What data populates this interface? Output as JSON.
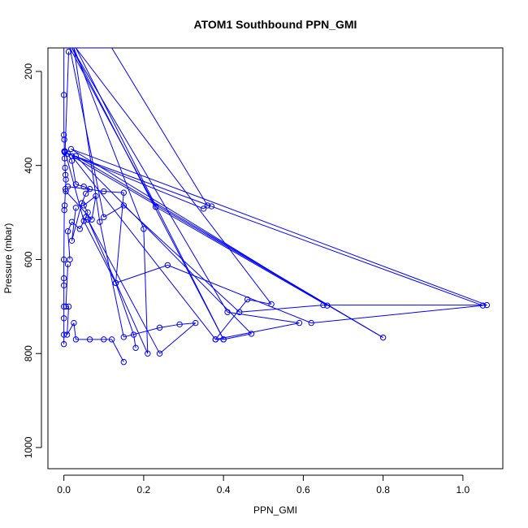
{
  "chart_data": {
    "type": "scatter",
    "title": "ATOM1 Southbound PPN_GMI",
    "xlabel": "PPN_GMI",
    "ylabel": "Pressure (mbar)",
    "xlim": [
      -0.04,
      1.1
    ],
    "ylim": [
      1045,
      150
    ],
    "y_reversed": true,
    "x_ticks": [
      "0.0",
      "0.2",
      "0.4",
      "0.6",
      "0.8",
      "1.0"
    ],
    "x_tick_values": [
      0,
      0.2,
      0.4,
      0.6,
      0.8,
      1.0
    ],
    "y_ticks": [
      "200",
      "400",
      "600",
      "800",
      "1000"
    ],
    "y_tick_values": [
      200,
      400,
      600,
      800,
      1000
    ],
    "grid": false,
    "series_color": "#0000ff",
    "series": [
      {
        "x": [
          0.0,
          0.0,
          0.0,
          0.001,
          0.001,
          0.002,
          0.003,
          0.004,
          0.005,
          0.004,
          0.002,
          0.001,
          0.0,
          0.0,
          0.0,
          0.0,
          0.0,
          0.0,
          0.0
        ],
        "y": [
          150,
          250,
          335,
          345,
          370,
          385,
          405,
          420,
          430,
          450,
          485,
          495,
          600,
          640,
          655,
          700,
          725,
          760,
          780
        ]
      },
      {
        "x": [
          0.01,
          0.12,
          0.36,
          0.35,
          0.002,
          0.37,
          1.05,
          0.62,
          0.26,
          0.13,
          0.05,
          0.003,
          0.012
        ],
        "y": [
          150,
          150,
          485,
          492,
          372,
          487,
          698,
          735,
          612,
          650,
          518,
          370,
          158
        ]
      },
      {
        "x": [
          0.015,
          0.23,
          0.66,
          0.018,
          1.06,
          0.65,
          0.44,
          0.15,
          0.1,
          0.015
        ],
        "y": [
          150,
          488,
          698,
          365,
          697,
          697,
          712,
          485,
          510,
          150
        ]
      },
      {
        "x": [
          0.02,
          0.4,
          0.47,
          0.03,
          0.8,
          0.02,
          0.38,
          0.59,
          0.41,
          0.02
        ],
        "y": [
          150,
          770,
          758,
          380,
          766,
          380,
          770,
          735,
          712,
          150
        ]
      },
      {
        "x": [
          0.025,
          0.2,
          0.21,
          0.06,
          0.24,
          0.33,
          0.29,
          0.24,
          0.15,
          0.09,
          0.025
        ],
        "y": [
          150,
          535,
          800,
          515,
          800,
          735,
          738,
          745,
          765,
          520,
          150
        ]
      },
      {
        "x": [
          0.03,
          0.4,
          0.38,
          0.46,
          0.52,
          0.03
        ],
        "y": [
          150,
          770,
          770,
          685,
          695,
          150
        ]
      },
      {
        "x": [
          0.01,
          0.02,
          0.03,
          0.05,
          0.065,
          0.055,
          0.045,
          0.02,
          0.03
        ],
        "y": [
          375,
          390,
          440,
          445,
          450,
          460,
          480,
          560,
          490
        ]
      },
      {
        "x": [
          0.005,
          0.07,
          0.08,
          0.05,
          0.06,
          0.055,
          0.04,
          0.02,
          0.01,
          0.015
        ],
        "y": [
          455,
          515,
          465,
          485,
          500,
          510,
          535,
          520,
          540,
          600
        ]
      },
      {
        "x": [
          0.01,
          0.005,
          0.012,
          0.008,
          0.025,
          0.03,
          0.065,
          0.1,
          0.12,
          0.15
        ],
        "y": [
          610,
          700,
          700,
          760,
          735,
          770,
          770,
          770,
          770,
          818
        ]
      },
      {
        "x": [
          0.01,
          0.1,
          0.15,
          0.13,
          0.175,
          0.18
        ],
        "y": [
          445,
          455,
          458,
          650,
          760,
          788
        ]
      }
    ]
  }
}
